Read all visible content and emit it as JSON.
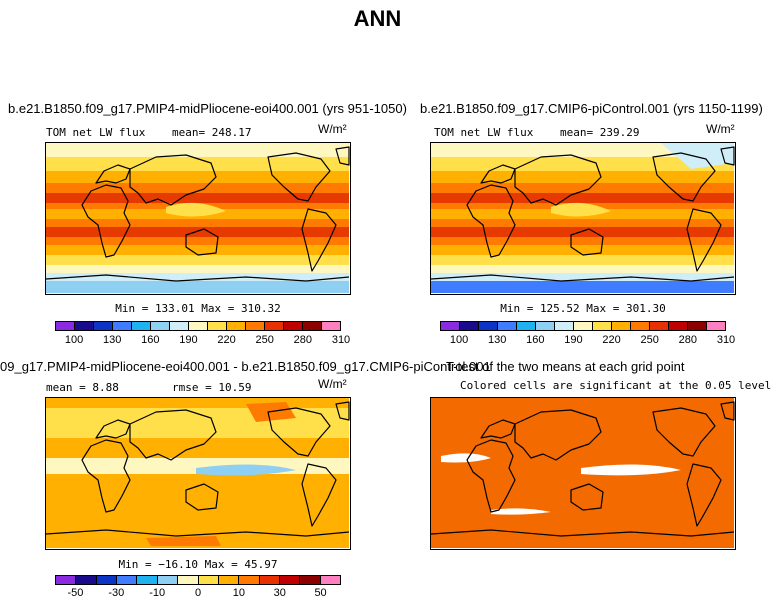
{
  "title": "ANN",
  "units": "W/m²",
  "panels": [
    {
      "title": "b.e21.B1850.f09_g17.PMIP4-midPliocene-eoi400.001 (yrs 951-1050)",
      "left_label": "TOM net LW flux",
      "right_label": "mean= 248.17",
      "stats": "Min = 133.01 Max = 310.32"
    },
    {
      "title": "b.e21.B1850.f09_g17.CMIP6-piControl.001 (yrs 1150-1199)",
      "left_label": "TOM net LW flux",
      "right_label": "mean= 239.29",
      "stats": "Min = 125.52 Max = 301.30"
    },
    {
      "title": "09_g17.PMIP4-midPliocene-eoi400.001 - b.e21.B1850.f09_g17.CMIP6-piControl.001",
      "left_label": "mean =  8.88",
      "right_label": "rmse =  10.59",
      "stats": "Min = −16.10 Max =  45.97"
    },
    {
      "title": "T-test of the two means at each grid point",
      "subtitle": "Colored cells are significant at the 0.05 level"
    }
  ],
  "colorbar_abs": {
    "labels": [
      "100",
      "130",
      "160",
      "190",
      "220",
      "250",
      "280",
      "310"
    ],
    "colors": [
      "#8a2be2",
      "#1a0a8c",
      "#0c35c8",
      "#3f7cff",
      "#1eb3f0",
      "#8fd0f2",
      "#cfeef8",
      "#fff7c0",
      "#ffe04a",
      "#ffb000",
      "#ff7a00",
      "#e83000",
      "#c00000",
      "#8c0000",
      "#ff80c0"
    ]
  },
  "colorbar_diff": {
    "labels": [
      "-50",
      "-30",
      "-10",
      "0",
      "10",
      "30",
      "50"
    ],
    "colors": [
      "#8a2be2",
      "#1a0a8c",
      "#0c35c8",
      "#3f7cff",
      "#1eb3f0",
      "#8fd0f2",
      "#fff7c0",
      "#ffe04a",
      "#ffb000",
      "#ff7a00",
      "#e83000",
      "#c00000",
      "#8c0000",
      "#ff80c0"
    ]
  },
  "map_colors": {
    "hot": "#e63a00",
    "warm": "#ff7a00",
    "mild": "#ffb000",
    "pale": "#ffe04a",
    "cream": "#fff7c0",
    "cool": "#cfeef8",
    "blue": "#8fd0f2",
    "deep": "#3f7cff",
    "sig": "#f26a00"
  }
}
